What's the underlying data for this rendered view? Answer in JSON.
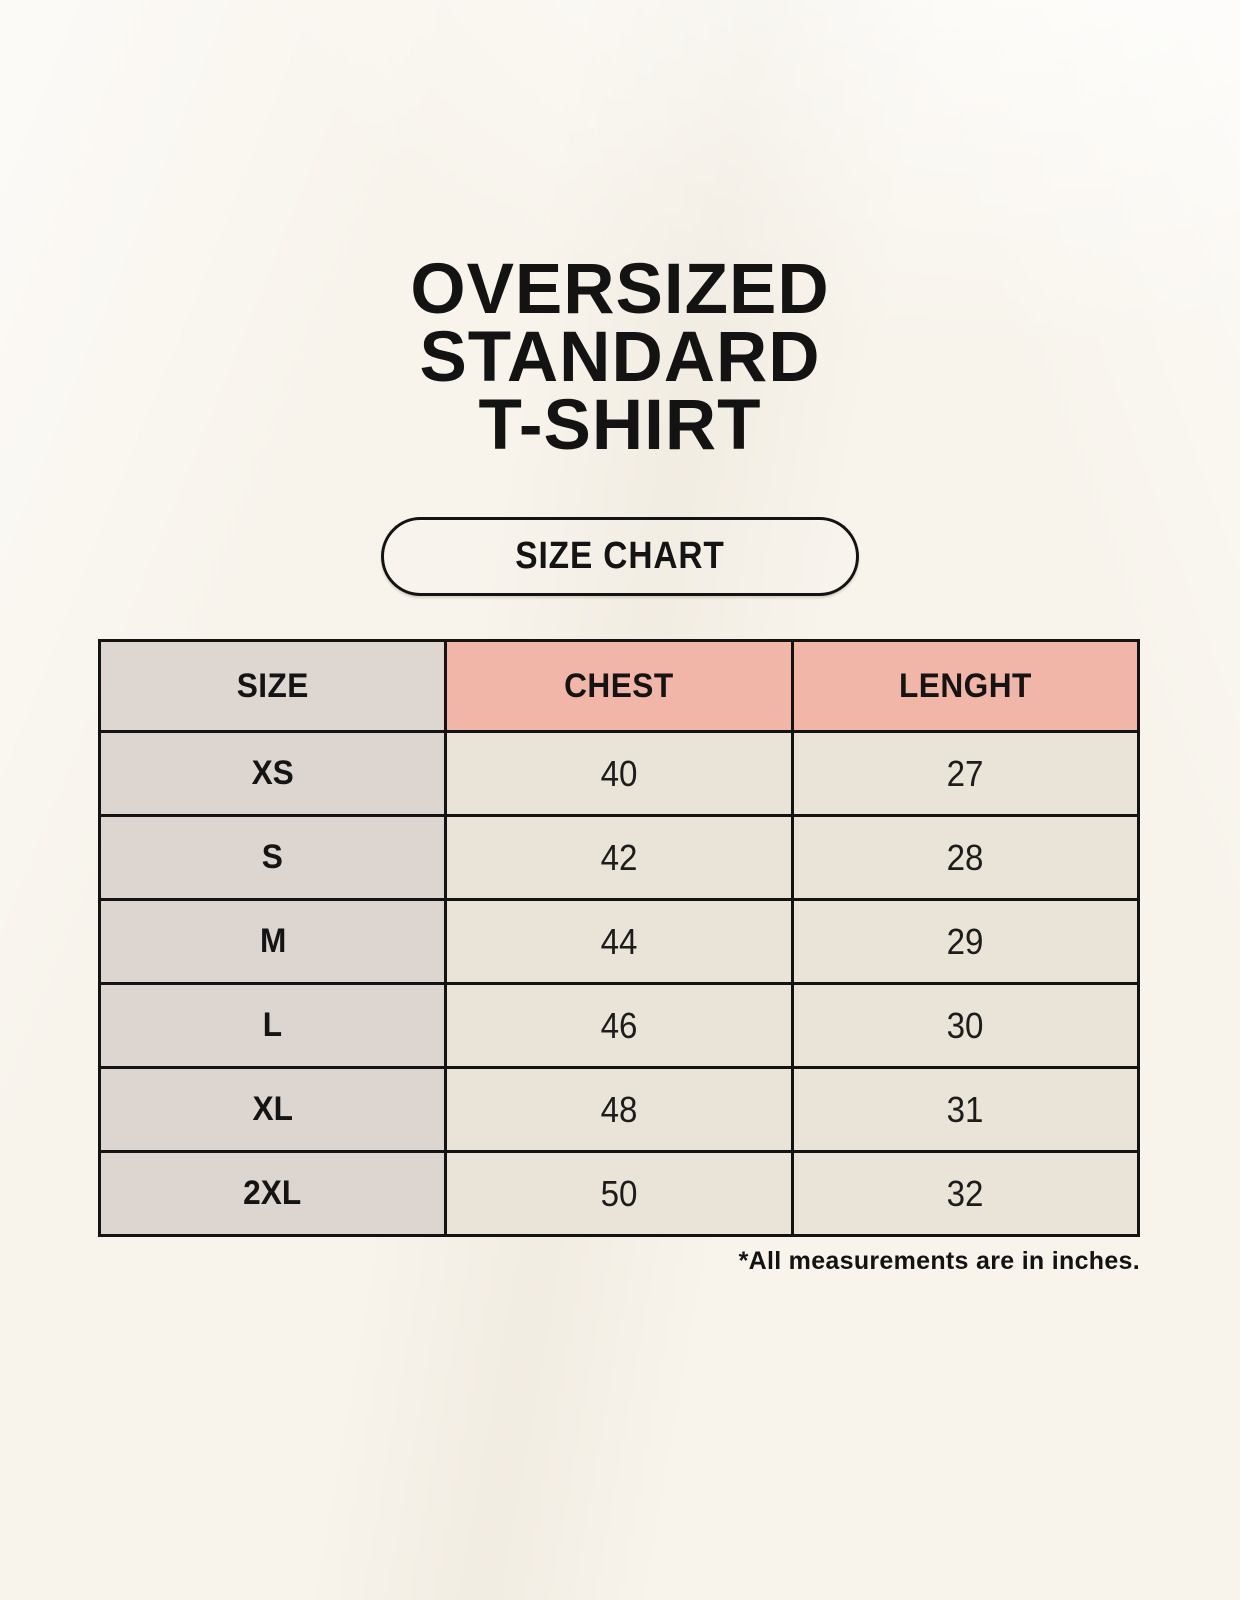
{
  "title": {
    "lines": [
      "OVERSIZED",
      "STANDARD",
      "T-SHIRT"
    ]
  },
  "badge": {
    "label": "SIZE CHART"
  },
  "note": "*All measurements are in inches.",
  "colors": {
    "background": "#f8f4ec",
    "border": "#131313",
    "size_column_bg": "#dcd5d0",
    "size_header_bg": "#ddd6d1",
    "measure_header_bg": "#f1b6a7",
    "value_cell_bg": "#eae3d7",
    "text": "#131313"
  },
  "chart_data": {
    "type": "table",
    "title": "OVERSIZED STANDARD T-SHIRT",
    "subtitle": "SIZE CHART",
    "columns": [
      "SIZE",
      "CHEST",
      "LENGHT"
    ],
    "rows": [
      [
        "XS",
        "40",
        "27"
      ],
      [
        "S",
        "42",
        "28"
      ],
      [
        "M",
        "44",
        "29"
      ],
      [
        "L",
        "46",
        "30"
      ],
      [
        "XL",
        "48",
        "31"
      ],
      [
        "2XL",
        "50",
        "32"
      ]
    ],
    "footnote": "*All measurements are in inches.",
    "units": "inches"
  }
}
